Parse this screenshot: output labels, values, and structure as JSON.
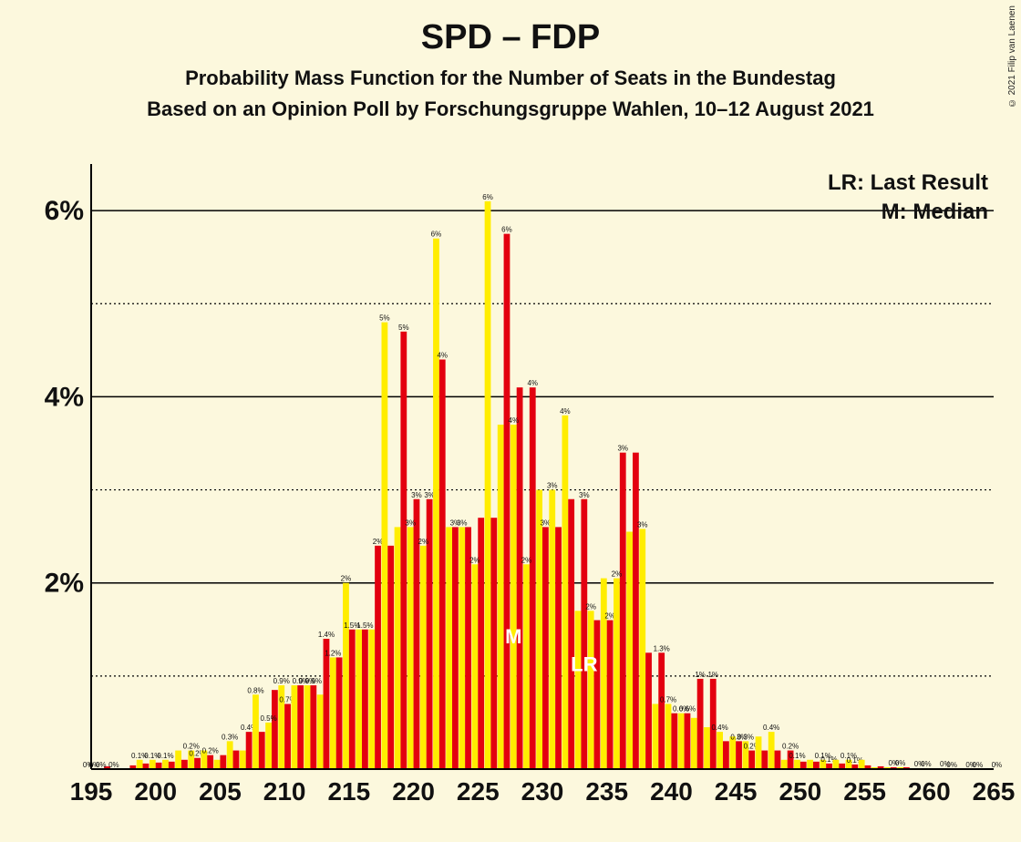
{
  "copyright": "© 2021 Filip van Laenen",
  "title": "SPD – FDP",
  "subtitle1": "Probability Mass Function for the Number of Seats in the Bundestag",
  "subtitle2": "Based on an Opinion Poll by Forschungsgruppe Wahlen, 10–12 August 2021",
  "legend": {
    "lr": "LR: Last Result",
    "m": "M: Median"
  },
  "chart": {
    "type": "bar",
    "background_color": "#fcf8dd",
    "axis_color": "#000000",
    "grid_major_color": "#000000",
    "grid_minor_dash": "2,3",
    "bar_colors": {
      "yellow": "#ffed00",
      "red": "#e3000f"
    },
    "ymax": 6.5,
    "ytick_step": 2,
    "yticks": [
      2,
      4,
      6
    ],
    "minor_y": [
      1,
      3,
      5
    ],
    "x_start": 195,
    "x_end": 265,
    "x_label_step": 5,
    "median_x": 228,
    "lr_x": 233,
    "data": [
      {
        "x": 195,
        "y": 0,
        "r": 0,
        "yl": "0%",
        "rl": "0%"
      },
      {
        "x": 196,
        "y": 0,
        "r": 0.03,
        "yl": "0%",
        "rl": ""
      },
      {
        "x": 197,
        "y": 0,
        "r": 0,
        "yl": "0%",
        "rl": ""
      },
      {
        "x": 198,
        "y": 0,
        "r": 0.04,
        "yl": "",
        "rl": ""
      },
      {
        "x": 199,
        "y": 0.1,
        "r": 0.06,
        "yl": "0.1%",
        "rl": ""
      },
      {
        "x": 200,
        "y": 0.1,
        "r": 0.07,
        "yl": "0.1%",
        "rl": ""
      },
      {
        "x": 201,
        "y": 0.1,
        "r": 0.08,
        "yl": "0.1%",
        "rl": ""
      },
      {
        "x": 202,
        "y": 0.2,
        "r": 0.1,
        "yl": "",
        "rl": ""
      },
      {
        "x": 203,
        "y": 0.2,
        "r": 0.12,
        "yl": "0.2%",
        "rl": "0.2%"
      },
      {
        "x": 204,
        "y": 0.2,
        "r": 0.15,
        "yl": "",
        "rl": "0.2%"
      },
      {
        "x": 205,
        "y": 0.1,
        "r": 0.15,
        "yl": "",
        "rl": ""
      },
      {
        "x": 206,
        "y": 0.3,
        "r": 0.2,
        "yl": "0.3%",
        "rl": ""
      },
      {
        "x": 207,
        "y": 0.2,
        "r": 0.4,
        "yl": "",
        "rl": "0.4%"
      },
      {
        "x": 208,
        "y": 0.8,
        "r": 0.4,
        "yl": "0.8%",
        "rl": ""
      },
      {
        "x": 209,
        "y": 0.5,
        "r": 0.85,
        "yl": "0.5%",
        "rl": ""
      },
      {
        "x": 210,
        "y": 0.9,
        "r": 0.7,
        "yl": "0.9%",
        "rl": "0.7%"
      },
      {
        "x": 211,
        "y": 0.9,
        "r": 0.9,
        "yl": "",
        "rl": "0.9%"
      },
      {
        "x": 212,
        "y": 0.9,
        "r": 0.9,
        "yl": "0.9%",
        "rl": "0.9%"
      },
      {
        "x": 213,
        "y": 0.8,
        "r": 1.4,
        "yl": "",
        "rl": "1.4%"
      },
      {
        "x": 214,
        "y": 1.2,
        "r": 1.2,
        "yl": "1.2%",
        "rl": ""
      },
      {
        "x": 215,
        "y": 2.0,
        "r": 1.5,
        "yl": "2%",
        "rl": "1.5%"
      },
      {
        "x": 216,
        "y": 1.5,
        "r": 1.5,
        "yl": "",
        "rl": "1.5%"
      },
      {
        "x": 217,
        "y": 1.5,
        "r": 2.4,
        "yl": "",
        "rl": "2%"
      },
      {
        "x": 218,
        "y": 4.8,
        "r": 2.4,
        "yl": "5%",
        "rl": ""
      },
      {
        "x": 219,
        "y": 2.6,
        "r": 4.7,
        "yl": "",
        "rl": "5%"
      },
      {
        "x": 220,
        "y": 2.6,
        "r": 2.9,
        "yl": "3%",
        "rl": "3%"
      },
      {
        "x": 221,
        "y": 2.4,
        "r": 2.9,
        "yl": "2%",
        "rl": "3%"
      },
      {
        "x": 222,
        "y": 5.7,
        "r": 4.4,
        "yl": "6%",
        "rl": "4%"
      },
      {
        "x": 223,
        "y": 2.6,
        "r": 2.6,
        "yl": "",
        "rl": "3%"
      },
      {
        "x": 224,
        "y": 2.6,
        "r": 2.6,
        "yl": "3%",
        "rl": ""
      },
      {
        "x": 225,
        "y": 2.2,
        "r": 2.7,
        "yl": "2%",
        "rl": ""
      },
      {
        "x": 226,
        "y": 6.1,
        "r": 2.7,
        "yl": "6%",
        "rl": ""
      },
      {
        "x": 227,
        "y": 3.7,
        "r": 5.75,
        "yl": "",
        "rl": "6%"
      },
      {
        "x": 228,
        "y": 3.7,
        "r": 4.1,
        "yl": "4%",
        "rl": ""
      },
      {
        "x": 229,
        "y": 2.2,
        "r": 4.1,
        "yl": "2%",
        "rl": "4%"
      },
      {
        "x": 230,
        "y": 3.0,
        "r": 2.6,
        "yl": "",
        "rl": "3%"
      },
      {
        "x": 231,
        "y": 3.0,
        "r": 2.6,
        "yl": "3%",
        "rl": ""
      },
      {
        "x": 232,
        "y": 3.8,
        "r": 2.9,
        "yl": "4%",
        "rl": ""
      },
      {
        "x": 233,
        "y": 1.7,
        "r": 2.9,
        "yl": "",
        "rl": "3%"
      },
      {
        "x": 234,
        "y": 1.7,
        "r": 1.6,
        "yl": "2%",
        "rl": ""
      },
      {
        "x": 235,
        "y": 2.05,
        "r": 1.6,
        "yl": "",
        "rl": "2%"
      },
      {
        "x": 236,
        "y": 2.05,
        "r": 3.4,
        "yl": "2%",
        "rl": "3%"
      },
      {
        "x": 237,
        "y": 2.55,
        "r": 3.4,
        "yl": "",
        "rl": ""
      },
      {
        "x": 238,
        "y": 2.58,
        "r": 1.25,
        "yl": "3%",
        "rl": ""
      },
      {
        "x": 239,
        "y": 0.7,
        "r": 1.25,
        "yl": "",
        "rl": "1.3%"
      },
      {
        "x": 240,
        "y": 0.7,
        "r": 0.6,
        "yl": "0.7%",
        "rl": ""
      },
      {
        "x": 241,
        "y": 0.6,
        "r": 0.6,
        "yl": "0.6%",
        "rl": "0.6%"
      },
      {
        "x": 242,
        "y": 0.55,
        "r": 0.97,
        "yl": "",
        "rl": "1%"
      },
      {
        "x": 243,
        "y": 0.45,
        "r": 0.97,
        "yl": "",
        "rl": "1%"
      },
      {
        "x": 244,
        "y": 0.4,
        "r": 0.3,
        "yl": "0.4%",
        "rl": ""
      },
      {
        "x": 245,
        "y": 0.35,
        "r": 0.3,
        "yl": "",
        "rl": "0.3%"
      },
      {
        "x": 246,
        "y": 0.3,
        "r": 0.2,
        "yl": "0.3%",
        "rl": "0.2%"
      },
      {
        "x": 247,
        "y": 0.35,
        "r": 0.2,
        "yl": "",
        "rl": ""
      },
      {
        "x": 248,
        "y": 0.4,
        "r": 0.2,
        "yl": "0.4%",
        "rl": ""
      },
      {
        "x": 249,
        "y": 0.1,
        "r": 0.2,
        "yl": "",
        "rl": "0.2%"
      },
      {
        "x": 250,
        "y": 0.1,
        "r": 0.08,
        "yl": "0.1%",
        "rl": ""
      },
      {
        "x": 251,
        "y": 0.1,
        "r": 0.08,
        "yl": "",
        "rl": ""
      },
      {
        "x": 252,
        "y": 0.1,
        "r": 0.06,
        "yl": "0.1%",
        "rl": "0.1%"
      },
      {
        "x": 253,
        "y": 0.1,
        "r": 0.06,
        "yl": "",
        "rl": ""
      },
      {
        "x": 254,
        "y": 0.1,
        "r": 0.05,
        "yl": "0.1%",
        "rl": "0.1%"
      },
      {
        "x": 255,
        "y": 0.1,
        "r": 0.04,
        "yl": "",
        "rl": ""
      },
      {
        "x": 256,
        "y": 0.02,
        "r": 0.03,
        "yl": "",
        "rl": ""
      },
      {
        "x": 257,
        "y": 0.02,
        "r": 0.02,
        "yl": "",
        "rl": "0%"
      },
      {
        "x": 258,
        "y": 0.02,
        "r": 0.02,
        "yl": "0%",
        "rl": ""
      },
      {
        "x": 259,
        "y": 0.01,
        "r": 0.01,
        "yl": "",
        "rl": "0%"
      },
      {
        "x": 260,
        "y": 0.01,
        "r": 0.01,
        "yl": "0%",
        "rl": ""
      },
      {
        "x": 261,
        "y": 0,
        "r": 0.01,
        "yl": "",
        "rl": "0%"
      },
      {
        "x": 262,
        "y": 0,
        "r": 0,
        "yl": "0%",
        "rl": ""
      },
      {
        "x": 263,
        "y": 0,
        "r": 0,
        "yl": "",
        "rl": "0%"
      },
      {
        "x": 264,
        "y": 0,
        "r": 0,
        "yl": "0%",
        "rl": ""
      },
      {
        "x": 265,
        "y": 0,
        "r": 0,
        "yl": "",
        "rl": "0%"
      }
    ]
  }
}
